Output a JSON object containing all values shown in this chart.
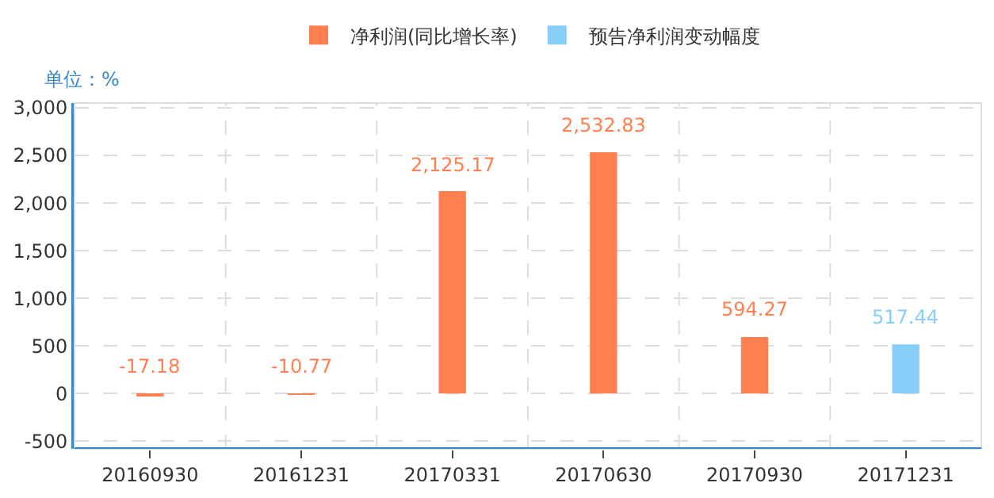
{
  "chart_data": {
    "type": "bar",
    "ylabel": "单位：%",
    "categories": [
      "20160930",
      "20161231",
      "20170331",
      "20170630",
      "20170930",
      "20171231"
    ],
    "series": [
      {
        "name": "净利润(同比增长率)",
        "color": "#ff7f50",
        "values": [
          -17.18,
          -10.77,
          2125.17,
          2532.83,
          594.27,
          null
        ],
        "value_labels": [
          "-17.18",
          "-10.77",
          "2,125.17",
          "2,532.83",
          "594.27",
          null
        ]
      },
      {
        "name": "预告净利润变动幅度",
        "color": "#87cefa",
        "values": [
          null,
          null,
          null,
          null,
          null,
          517.44
        ],
        "value_labels": [
          null,
          null,
          null,
          null,
          null,
          "517.44"
        ]
      }
    ],
    "ylim": [
      -580,
      3050
    ],
    "yticks": [
      -500,
      0,
      500,
      {
        "value": 1000,
        "label": "1,000"
      },
      {
        "value": 1500,
        "label": "1,500"
      },
      {
        "value": 2000,
        "label": "2,000"
      },
      {
        "value": 2500,
        "label": "2,500"
      },
      {
        "value": 3000,
        "label": "3,000"
      }
    ],
    "grid": true,
    "legend": "top"
  }
}
